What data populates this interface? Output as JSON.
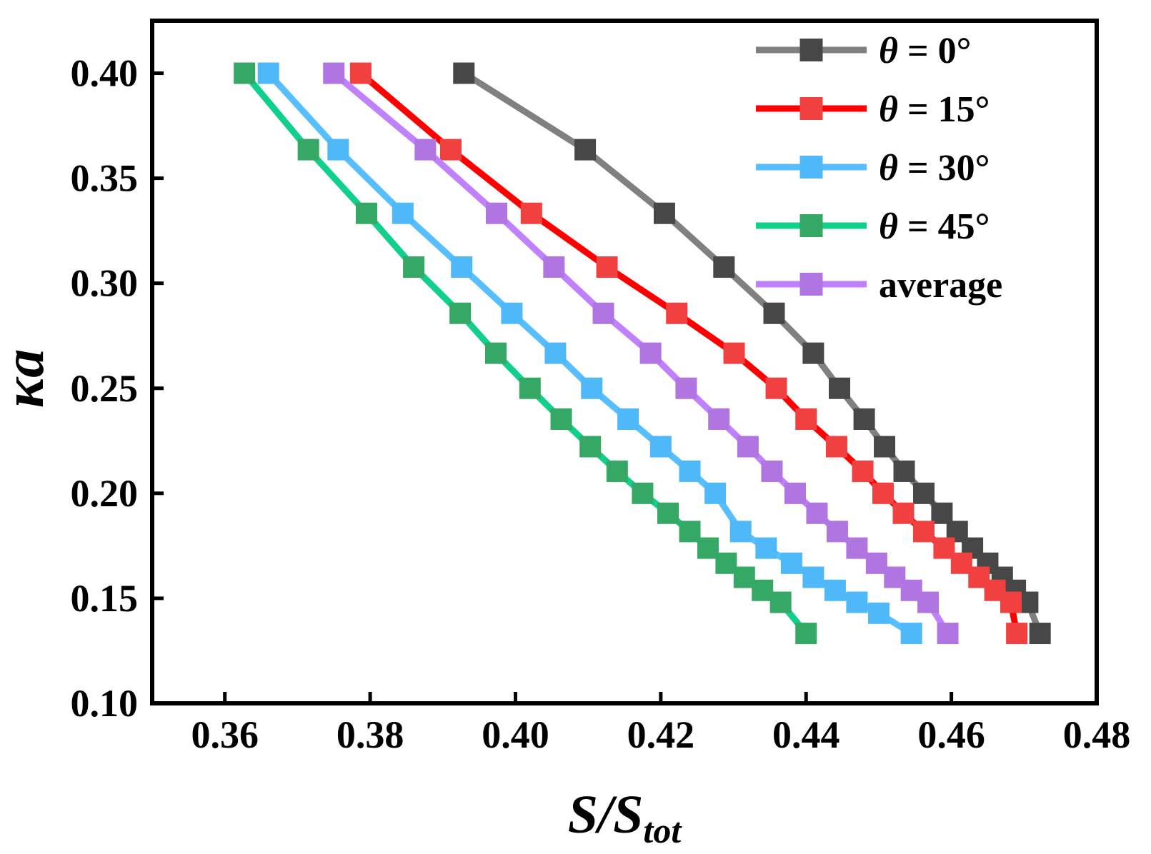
{
  "chart_data": {
    "type": "line",
    "title": "",
    "xlabel": "S/S",
    "xlabel_subscript": "tot",
    "ylabel": "κa",
    "xlim": [
      0.35,
      0.48
    ],
    "ylim": [
      0.1,
      0.425
    ],
    "xticks": [
      "0.36",
      "0.38",
      "0.40",
      "0.42",
      "0.44",
      "0.46",
      "0.48"
    ],
    "xtick_values": [
      0.36,
      0.38,
      0.4,
      0.42,
      0.44,
      0.46,
      0.48
    ],
    "yticks": [
      "0.10",
      "0.15",
      "0.20",
      "0.25",
      "0.30",
      "0.35",
      "0.40"
    ],
    "ytick_values": [
      0.1,
      0.15,
      0.2,
      0.25,
      0.3,
      0.35,
      0.4
    ],
    "grid": false,
    "legend_position": "top-right",
    "series": [
      {
        "name": "θ = 0°",
        "line_color": "#808080",
        "marker_color": "#474747",
        "x": [
          0.3929,
          0.4096,
          0.4205,
          0.4287,
          0.4356,
          0.441,
          0.4446,
          0.448,
          0.4508,
          0.4535,
          0.4562,
          0.4587,
          0.4608,
          0.4629,
          0.465,
          0.467,
          0.4688,
          0.4705,
          0.4722
        ],
        "y": [
          0.4,
          0.3636,
          0.3333,
          0.3077,
          0.2857,
          0.2667,
          0.25,
          0.2353,
          0.2222,
          0.2105,
          0.2,
          0.1905,
          0.1818,
          0.1739,
          0.1667,
          0.16,
          0.1538,
          0.1481,
          0.1333
        ]
      },
      {
        "name": "θ = 15°",
        "line_color": "#ff0000",
        "marker_color": "#f04040",
        "x": [
          0.3787,
          0.3911,
          0.4022,
          0.4126,
          0.4222,
          0.4301,
          0.4359,
          0.44,
          0.4442,
          0.4478,
          0.4506,
          0.4534,
          0.4562,
          0.459,
          0.4614,
          0.4638,
          0.466,
          0.4682,
          0.469
        ],
        "y": [
          0.4,
          0.3636,
          0.3333,
          0.3077,
          0.2857,
          0.2667,
          0.25,
          0.2353,
          0.2222,
          0.2105,
          0.2,
          0.1905,
          0.1818,
          0.1739,
          0.1667,
          0.16,
          0.1538,
          0.1481,
          0.1333
        ]
      },
      {
        "name": "θ = 30°",
        "line_color": "#57beff",
        "marker_color": "#4fb8f8",
        "x": [
          0.366,
          0.3756,
          0.3845,
          0.3926,
          0.3995,
          0.4055,
          0.4105,
          0.4155,
          0.42,
          0.424,
          0.4275,
          0.431,
          0.4345,
          0.438,
          0.441,
          0.444,
          0.447,
          0.45,
          0.4545
        ],
        "y": [
          0.4,
          0.3636,
          0.3333,
          0.3077,
          0.2857,
          0.2667,
          0.25,
          0.2353,
          0.2222,
          0.2105,
          0.2,
          0.1818,
          0.1739,
          0.1667,
          0.16,
          0.1538,
          0.1481,
          0.1429,
          0.1333
        ]
      },
      {
        "name": "θ = 45°",
        "line_color": "#11d08c",
        "marker_color": "#35a865",
        "x": [
          0.3627,
          0.3715,
          0.3795,
          0.386,
          0.3924,
          0.3973,
          0.402,
          0.4063,
          0.4103,
          0.414,
          0.4175,
          0.421,
          0.424,
          0.4265,
          0.429,
          0.4315,
          0.434,
          0.4365,
          0.44
        ],
        "y": [
          0.4,
          0.3636,
          0.3333,
          0.3077,
          0.2857,
          0.2667,
          0.25,
          0.2353,
          0.2222,
          0.2105,
          0.2,
          0.1905,
          0.1818,
          0.1739,
          0.1667,
          0.16,
          0.1538,
          0.1481,
          0.1333
        ]
      },
      {
        "name": "average",
        "line_color": "#c080ff",
        "marker_color": "#b075e0",
        "x": [
          0.375,
          0.3876,
          0.3974,
          0.4053,
          0.4121,
          0.4186,
          0.4235,
          0.428,
          0.432,
          0.4353,
          0.4385,
          0.4415,
          0.4443,
          0.447,
          0.4497,
          0.4522,
          0.4545,
          0.4568,
          0.4595
        ],
        "y": [
          0.4,
          0.3636,
          0.3333,
          0.3077,
          0.2857,
          0.2667,
          0.25,
          0.2353,
          0.2222,
          0.2105,
          0.2,
          0.1905,
          0.1818,
          0.1739,
          0.1667,
          0.16,
          0.1538,
          0.1481,
          0.1333
        ]
      }
    ]
  }
}
